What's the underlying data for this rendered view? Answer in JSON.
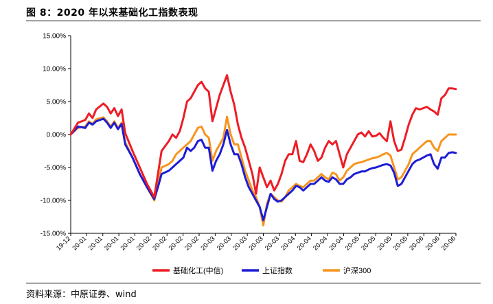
{
  "figure": {
    "title": "图 8：2020 年以来基础化工指数表现",
    "source": "资料来源：中原证券、wind"
  },
  "chart_data": {
    "type": "line",
    "title": "",
    "xlabel": "",
    "ylabel": "",
    "ylim": [
      -15,
      15
    ],
    "y_ticks": [
      "15.00%",
      "10.00%",
      "5.00%",
      "0.00%",
      "-5.00%",
      "-10.00%",
      "-15.00%"
    ],
    "y_tick_values": [
      15,
      10,
      5,
      0,
      -5,
      -10,
      -15
    ],
    "x_tick_labels": [
      "19-12",
      "20-01",
      "20-01",
      "20-01",
      "20-01",
      "20-02",
      "20-02",
      "20-02",
      "20-02",
      "20-03",
      "20-03",
      "20-03",
      "20-03",
      "20-03",
      "20-04",
      "20-04",
      "20-04",
      "20-04",
      "20-05",
      "20-05",
      "20-05",
      "20-05",
      "20-06",
      "20-06",
      "20-06"
    ],
    "grid": false,
    "legend_position": "bottom",
    "colors": {
      "basic_chem": "#ee1c25",
      "shanghai": "#1c1cd6",
      "hs300": "#f7941d"
    },
    "series": [
      {
        "name": "基础化工(中信)",
        "key": "basic_chem",
        "points": [
          [
            0,
            0
          ],
          [
            2,
            1.8
          ],
          [
            4,
            2.2
          ],
          [
            5,
            3.2
          ],
          [
            6,
            2.5
          ],
          [
            7,
            3.8
          ],
          [
            9,
            4.7
          ],
          [
            10,
            4.2
          ],
          [
            11,
            3.2
          ],
          [
            12,
            4.0
          ],
          [
            13,
            2.8
          ],
          [
            14,
            3.8
          ],
          [
            15,
            0.2
          ],
          [
            17,
            -2.5
          ],
          [
            19,
            -5.0
          ],
          [
            21,
            -7.5
          ],
          [
            23,
            -9.5
          ],
          [
            24,
            -6.0
          ],
          [
            25,
            -2.5
          ],
          [
            27,
            -1.0
          ],
          [
            28,
            0.0
          ],
          [
            29,
            -0.5
          ],
          [
            30,
            0.5
          ],
          [
            31,
            2.5
          ],
          [
            32,
            5.0
          ],
          [
            33,
            5.5
          ],
          [
            34,
            6.5
          ],
          [
            35,
            7.5
          ],
          [
            36,
            8.0
          ],
          [
            37,
            7.0
          ],
          [
            38,
            6.5
          ],
          [
            39,
            2.0
          ],
          [
            40,
            4.0
          ],
          [
            41,
            6.0
          ],
          [
            42,
            7.5
          ],
          [
            43,
            9.0
          ],
          [
            44,
            6.5
          ],
          [
            45,
            4.5
          ],
          [
            46,
            1.5
          ],
          [
            47,
            -0.5
          ],
          [
            48,
            -2.0
          ],
          [
            49,
            -4.0
          ],
          [
            50,
            -6.0
          ],
          [
            51,
            -9.0
          ],
          [
            52,
            -5.0
          ],
          [
            53,
            -6.5
          ],
          [
            54,
            -8.0
          ],
          [
            55,
            -7.0
          ],
          [
            56,
            -8.5
          ],
          [
            57,
            -7.5
          ],
          [
            58,
            -6.0
          ],
          [
            59,
            -4.0
          ],
          [
            60,
            -3.0
          ],
          [
            61,
            -3.0
          ],
          [
            62,
            -1.0
          ],
          [
            63,
            -4.0
          ],
          [
            64,
            -4.2
          ],
          [
            65,
            -3.0
          ],
          [
            66,
            -1.5
          ],
          [
            67,
            -2.5
          ],
          [
            68,
            -4.0
          ],
          [
            69,
            -3.5
          ],
          [
            70,
            -2.0
          ],
          [
            71,
            -1.0
          ],
          [
            72,
            -1.5
          ],
          [
            73,
            -1.0
          ],
          [
            74,
            -3.0
          ],
          [
            75,
            -5.0
          ],
          [
            76,
            -3.0
          ],
          [
            77,
            -2.0
          ],
          [
            78,
            -1.0
          ],
          [
            79,
            0.0
          ],
          [
            80,
            0.3
          ],
          [
            81,
            -0.3
          ],
          [
            82,
            0.5
          ],
          [
            83,
            -0.3
          ],
          [
            84,
            -0.2
          ],
          [
            85,
            0.2
          ],
          [
            86,
            -0.5
          ],
          [
            87,
            -1.0
          ],
          [
            88,
            2.0
          ],
          [
            89,
            -1.0
          ],
          [
            90,
            -2.5
          ],
          [
            91,
            -2.3
          ],
          [
            92,
            -0.5
          ],
          [
            93,
            1.5
          ],
          [
            94,
            3.0
          ],
          [
            95,
            4.0
          ],
          [
            96,
            3.8
          ],
          [
            97,
            4.0
          ],
          [
            98,
            4.2
          ],
          [
            99,
            3.8
          ],
          [
            100,
            3.5
          ],
          [
            101,
            3.0
          ],
          [
            102,
            5.5
          ],
          [
            103,
            6.0
          ],
          [
            104,
            7.0
          ],
          [
            105,
            7.0
          ],
          [
            106,
            6.9
          ]
        ]
      },
      {
        "name": "上证指数",
        "key": "shanghai",
        "points": [
          [
            0,
            0
          ],
          [
            2,
            1.2
          ],
          [
            4,
            1.0
          ],
          [
            5,
            1.8
          ],
          [
            6,
            1.5
          ],
          [
            7,
            2.0
          ],
          [
            9,
            2.4
          ],
          [
            10,
            1.8
          ],
          [
            11,
            1.0
          ],
          [
            12,
            1.8
          ],
          [
            13,
            0.8
          ],
          [
            14,
            1.6
          ],
          [
            15,
            -1.5
          ],
          [
            17,
            -3.5
          ],
          [
            19,
            -6.0
          ],
          [
            21,
            -8.0
          ],
          [
            23,
            -9.8
          ],
          [
            24,
            -8.0
          ],
          [
            25,
            -6.0
          ],
          [
            27,
            -5.5
          ],
          [
            28,
            -5.0
          ],
          [
            29,
            -4.5
          ],
          [
            30,
            -4.0
          ],
          [
            31,
            -3.5
          ],
          [
            32,
            -2.0
          ],
          [
            33,
            -2.5
          ],
          [
            34,
            -2.0
          ],
          [
            35,
            -1.0
          ],
          [
            36,
            -0.8
          ],
          [
            37,
            -2.0
          ],
          [
            38,
            -2.0
          ],
          [
            39,
            -5.5
          ],
          [
            40,
            -4.0
          ],
          [
            41,
            -3.0
          ],
          [
            42,
            -1.5
          ],
          [
            43,
            0.7
          ],
          [
            44,
            -1.5
          ],
          [
            45,
            -3.0
          ],
          [
            46,
            -3.0
          ],
          [
            47,
            -4.5
          ],
          [
            48,
            -6.5
          ],
          [
            49,
            -8.0
          ],
          [
            50,
            -9.0
          ],
          [
            51,
            -10.0
          ],
          [
            52,
            -11.0
          ],
          [
            53,
            -13.0
          ],
          [
            54,
            -11.0
          ],
          [
            55,
            -9.0
          ],
          [
            56,
            -9.8
          ],
          [
            57,
            -10.2
          ],
          [
            58,
            -10.0
          ],
          [
            59,
            -9.5
          ],
          [
            60,
            -9.0
          ],
          [
            61,
            -8.5
          ],
          [
            62,
            -7.8
          ],
          [
            63,
            -8.0
          ],
          [
            64,
            -8.5
          ],
          [
            65,
            -8.0
          ],
          [
            66,
            -7.5
          ],
          [
            67,
            -7.5
          ],
          [
            68,
            -7.0
          ],
          [
            69,
            -6.5
          ],
          [
            70,
            -7.0
          ],
          [
            71,
            -7.2
          ],
          [
            72,
            -6.5
          ],
          [
            73,
            -6.8
          ],
          [
            74,
            -7.5
          ],
          [
            75,
            -7.5
          ],
          [
            76,
            -6.8
          ],
          [
            77,
            -6.5
          ],
          [
            78,
            -6.0
          ],
          [
            79,
            -5.8
          ],
          [
            80,
            -5.6
          ],
          [
            81,
            -5.6
          ],
          [
            82,
            -5.3
          ],
          [
            83,
            -5.1
          ],
          [
            84,
            -5.0
          ],
          [
            85,
            -4.8
          ],
          [
            86,
            -4.6
          ],
          [
            87,
            -4.5
          ],
          [
            88,
            -4.7
          ],
          [
            89,
            -5.8
          ],
          [
            90,
            -7.8
          ],
          [
            91,
            -7.5
          ],
          [
            92,
            -6.5
          ],
          [
            93,
            -5.5
          ],
          [
            94,
            -4.5
          ],
          [
            95,
            -4.0
          ],
          [
            96,
            -3.8
          ],
          [
            97,
            -3.5
          ],
          [
            98,
            -3.2
          ],
          [
            99,
            -3.0
          ],
          [
            100,
            -4.5
          ],
          [
            101,
            -5.2
          ],
          [
            102,
            -3.5
          ],
          [
            103,
            -3.5
          ],
          [
            104,
            -2.8
          ],
          [
            105,
            -2.7
          ],
          [
            106,
            -2.8
          ]
        ]
      },
      {
        "name": "沪深300",
        "key": "hs300",
        "points": [
          [
            0,
            0
          ],
          [
            2,
            1.0
          ],
          [
            4,
            1.2
          ],
          [
            5,
            2.0
          ],
          [
            6,
            1.6
          ],
          [
            7,
            2.3
          ],
          [
            9,
            2.6
          ],
          [
            10,
            2.0
          ],
          [
            11,
            1.2
          ],
          [
            12,
            2.0
          ],
          [
            13,
            1.0
          ],
          [
            14,
            1.8
          ],
          [
            15,
            -1.2
          ],
          [
            17,
            -3.5
          ],
          [
            19,
            -6.0
          ],
          [
            21,
            -8.0
          ],
          [
            23,
            -10.0
          ],
          [
            24,
            -7.5
          ],
          [
            25,
            -5.0
          ],
          [
            27,
            -4.5
          ],
          [
            28,
            -4.0
          ],
          [
            29,
            -3.0
          ],
          [
            30,
            -2.5
          ],
          [
            31,
            -2.0
          ],
          [
            32,
            -1.5
          ],
          [
            33,
            -1.0
          ],
          [
            34,
            0.0
          ],
          [
            35,
            1.0
          ],
          [
            36,
            1.2
          ],
          [
            37,
            0.0
          ],
          [
            38,
            -0.5
          ],
          [
            39,
            -4.0
          ],
          [
            40,
            -2.5
          ],
          [
            41,
            -1.5
          ],
          [
            42,
            -0.5
          ],
          [
            43,
            2.7
          ],
          [
            44,
            0.0
          ],
          [
            45,
            -1.5
          ],
          [
            46,
            -1.5
          ],
          [
            47,
            -3.5
          ],
          [
            48,
            -5.5
          ],
          [
            49,
            -7.0
          ],
          [
            50,
            -8.5
          ],
          [
            51,
            -9.5
          ],
          [
            52,
            -11.0
          ],
          [
            53,
            -13.8
          ],
          [
            54,
            -10.5
          ],
          [
            55,
            -9.0
          ],
          [
            56,
            -9.5
          ],
          [
            57,
            -10.0
          ],
          [
            58,
            -10.2
          ],
          [
            59,
            -9.5
          ],
          [
            60,
            -8.5
          ],
          [
            61,
            -8.0
          ],
          [
            62,
            -7.5
          ],
          [
            63,
            -7.8
          ],
          [
            64,
            -8.0
          ],
          [
            65,
            -7.5
          ],
          [
            66,
            -7.0
          ],
          [
            67,
            -7.0
          ],
          [
            68,
            -6.5
          ],
          [
            69,
            -6.0
          ],
          [
            70,
            -6.5
          ],
          [
            71,
            -6.8
          ],
          [
            72,
            -5.8
          ],
          [
            73,
            -6.0
          ],
          [
            74,
            -7.0
          ],
          [
            75,
            -6.5
          ],
          [
            76,
            -5.5
          ],
          [
            77,
            -5.0
          ],
          [
            78,
            -4.5
          ],
          [
            79,
            -4.3
          ],
          [
            80,
            -4.2
          ],
          [
            81,
            -4.0
          ],
          [
            82,
            -3.8
          ],
          [
            83,
            -3.6
          ],
          [
            84,
            -3.5
          ],
          [
            85,
            -3.3
          ],
          [
            86,
            -3.0
          ],
          [
            87,
            -2.8
          ],
          [
            88,
            -3.2
          ],
          [
            89,
            -5.0
          ],
          [
            90,
            -6.8
          ],
          [
            91,
            -6.5
          ],
          [
            92,
            -5.5
          ],
          [
            93,
            -4.5
          ],
          [
            94,
            -3.0
          ],
          [
            95,
            -2.5
          ],
          [
            96,
            -2.0
          ],
          [
            97,
            -1.5
          ],
          [
            98,
            -1.0
          ],
          [
            99,
            -1.0
          ],
          [
            100,
            -2.0
          ],
          [
            101,
            -2.5
          ],
          [
            102,
            -1.0
          ],
          [
            103,
            -0.5
          ],
          [
            104,
            0.0
          ],
          [
            105,
            0.0
          ],
          [
            106,
            0.0
          ]
        ]
      }
    ]
  }
}
